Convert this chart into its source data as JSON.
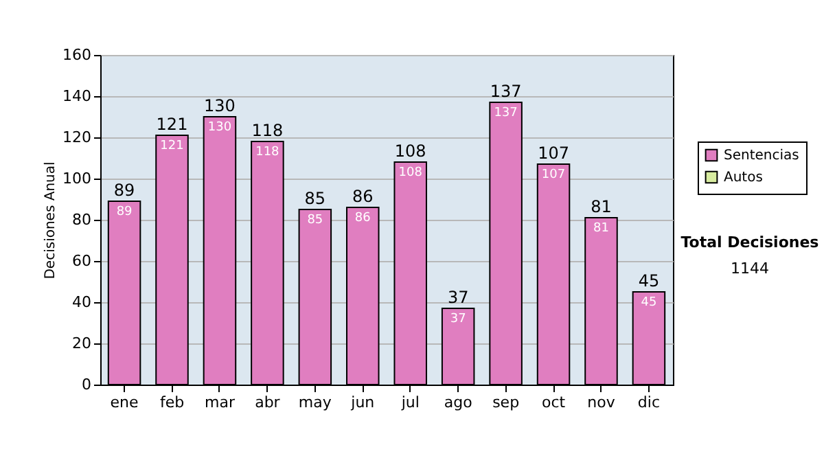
{
  "chart_data": {
    "type": "bar",
    "stacked": true,
    "ylabel": "Decisiones Anual",
    "categories": [
      "ene",
      "feb",
      "mar",
      "abr",
      "may",
      "jun",
      "jul",
      "ago",
      "sep",
      "oct",
      "nov",
      "dic"
    ],
    "series": [
      {
        "name": "Sentencias",
        "color": "#e07ec0",
        "values": [
          89,
          121,
          130,
          118,
          85,
          86,
          108,
          37,
          137,
          107,
          81,
          45
        ],
        "value_labels": [
          "89",
          "121",
          "130",
          "118",
          "85",
          "86",
          "108",
          "37",
          "137",
          "107",
          "81",
          "45"
        ]
      },
      {
        "name": "Autos",
        "color": "#d8eca0",
        "values": [
          null,
          null,
          null,
          null,
          null,
          null,
          null,
          null,
          null,
          null,
          null,
          null
        ]
      }
    ],
    "totals": [
      "89",
      "121",
      "130",
      "118",
      "85",
      "86",
      "108",
      "37",
      "137",
      "107",
      "81",
      "45"
    ],
    "ylim": [
      0,
      160
    ],
    "yticks": [
      0,
      20,
      40,
      60,
      80,
      100,
      120,
      140,
      160
    ],
    "grid": true,
    "legend": "right",
    "annotations": [
      "Total Decisiones",
      "1144"
    ]
  }
}
